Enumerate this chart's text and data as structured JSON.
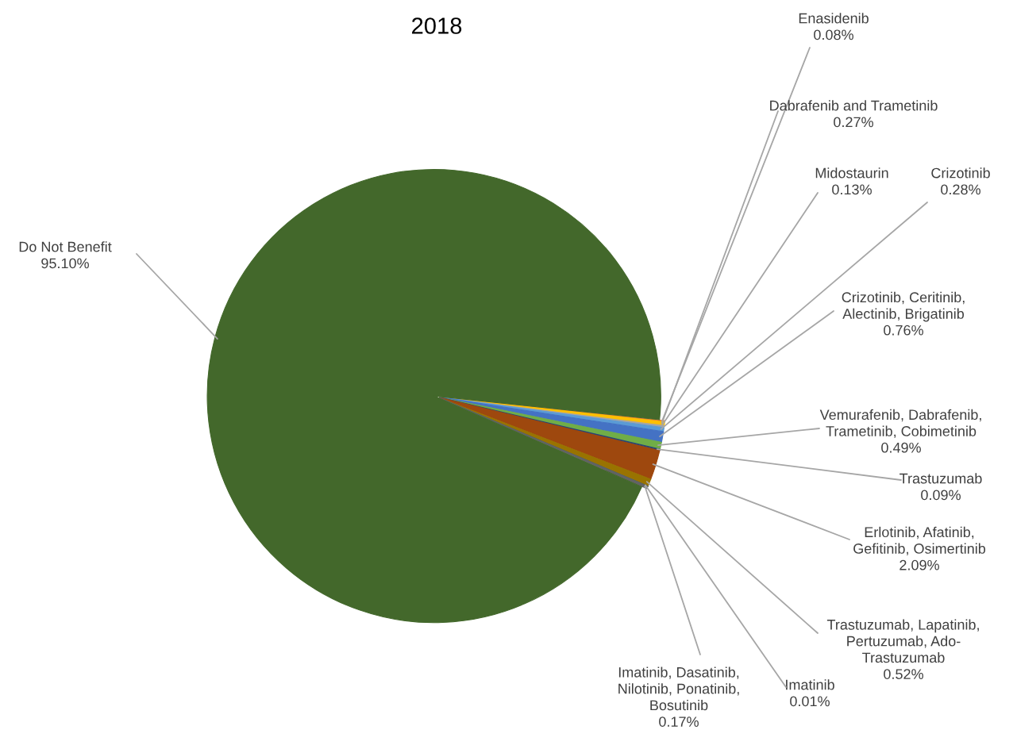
{
  "chart_data": {
    "type": "pie",
    "title": "2018",
    "categories": [
      "Enasidenib",
      "Dabrafenib and Trametinib",
      "Midostaurin",
      "Crizotinib",
      "Crizotinib, Ceritinib,\nAlectinib, Brigatinib",
      "Vemurafenib, Dabrafenib,\nTrametinib, Cobimetinib",
      "Trastuzumab",
      "Erlotinib, Afatinib,\nGefitinib, Osimertinib",
      "Trastuzumab, Lapatinib,\nPertuzumab, Ado-\nTrastuzumab",
      "Imatinib",
      "Imatinib, Dasatinib,\nNilotinib, Ponatinib,\nBosutinib",
      "Do Not Benefit"
    ],
    "values": [
      0.08,
      0.27,
      0.13,
      0.28,
      0.76,
      0.49,
      0.09,
      2.09,
      0.52,
      0.01,
      0.17,
      95.1
    ],
    "value_labels": [
      "0.08%",
      "0.27%",
      "0.13%",
      "0.28%",
      "0.76%",
      "0.49%",
      "0.09%",
      "2.09%",
      "0.52%",
      "0.01%",
      "0.17%",
      "95.10%"
    ],
    "colors": [
      "#ED7D31",
      "#FFC000",
      "#A5A5A5",
      "#5B9BD5",
      "#4472C4",
      "#70AD47",
      "#264478",
      "#9E480E",
      "#997300",
      "#255E91",
      "#636363",
      "#43682B"
    ]
  }
}
